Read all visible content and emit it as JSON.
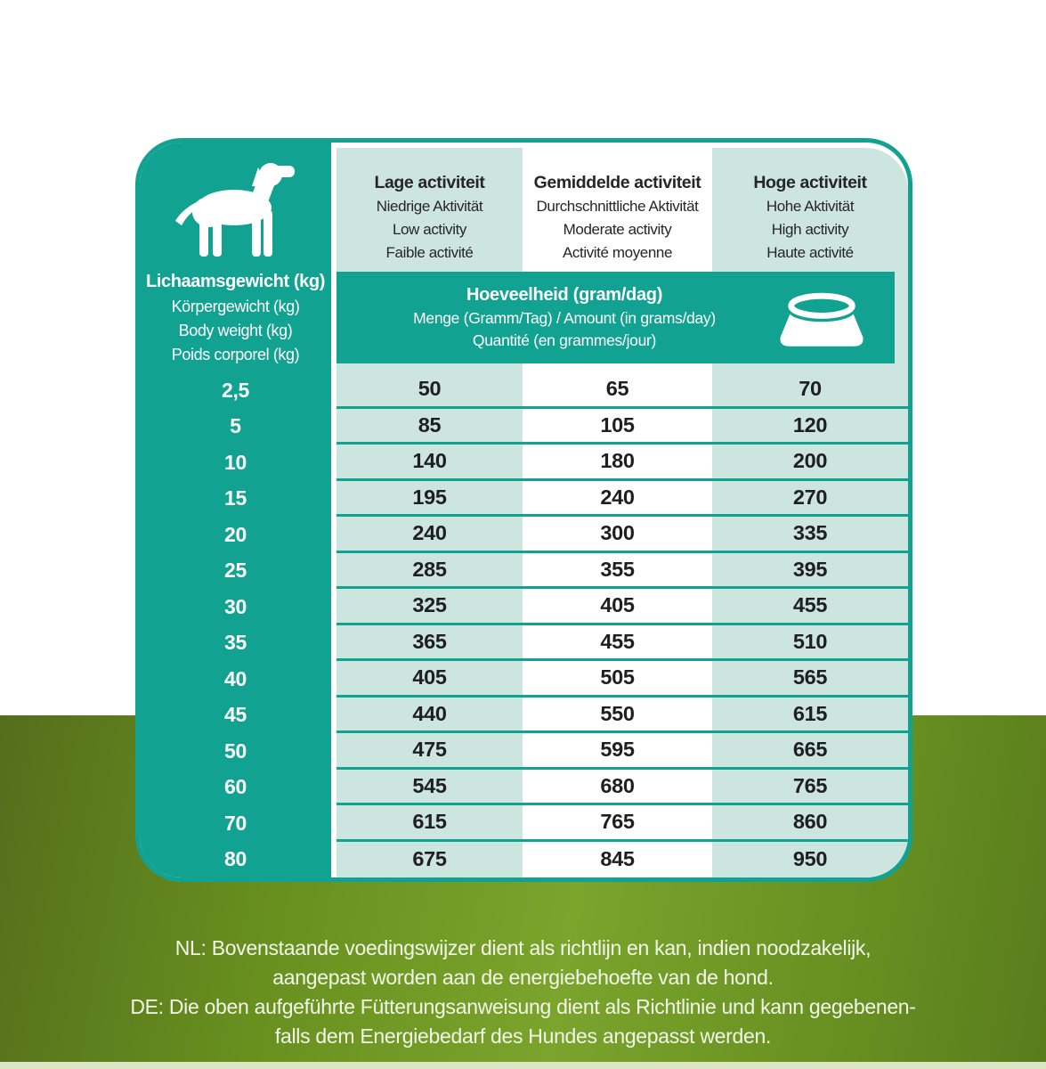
{
  "weight_panel": {
    "title": "Lichaamsgewicht (kg)",
    "subtitles": [
      "Körpergewicht (kg)",
      "Body weight (kg)",
      "Poids corporel (kg)"
    ]
  },
  "activity_columns": [
    {
      "title": "Lage activiteit",
      "subtitles": [
        "Niedrige Aktivität",
        "Low activity",
        "Faible activité"
      ]
    },
    {
      "title": "Gemiddelde activiteit",
      "subtitles": [
        "Durchschnittliche Aktivität",
        "Moderate activity",
        "Activité moyenne"
      ]
    },
    {
      "title": "Hoge activiteit",
      "subtitles": [
        "Hohe Aktivität",
        "High activity",
        "Haute activité"
      ]
    }
  ],
  "amount_band": {
    "title": "Hoeveelheid (gram/dag)",
    "subtitles": [
      "Menge (Gramm/Tag) / Amount (in grams/day)",
      "Quantité (en grammes/jour)"
    ]
  },
  "icons": {
    "dog": "dog-silhouette-icon",
    "bowl": "food-bowl-icon"
  },
  "colors": {
    "teal": "#12a291",
    "light_teal": "#cde5df",
    "green_left": "#546e1c",
    "green_center": "#7aa42c",
    "bottom_strip": "#dce6c4"
  },
  "table": {
    "rows": [
      {
        "weight": "2,5",
        "low": "50",
        "moderate": "65",
        "high": "70"
      },
      {
        "weight": "5",
        "low": "85",
        "moderate": "105",
        "high": "120"
      },
      {
        "weight": "10",
        "low": "140",
        "moderate": "180",
        "high": "200"
      },
      {
        "weight": "15",
        "low": "195",
        "moderate": "240",
        "high": "270"
      },
      {
        "weight": "20",
        "low": "240",
        "moderate": "300",
        "high": "335"
      },
      {
        "weight": "25",
        "low": "285",
        "moderate": "355",
        "high": "395"
      },
      {
        "weight": "30",
        "low": "325",
        "moderate": "405",
        "high": "455"
      },
      {
        "weight": "35",
        "low": "365",
        "moderate": "455",
        "high": "510"
      },
      {
        "weight": "40",
        "low": "405",
        "moderate": "505",
        "high": "565"
      },
      {
        "weight": "45",
        "low": "440",
        "moderate": "550",
        "high": "615"
      },
      {
        "weight": "50",
        "low": "475",
        "moderate": "595",
        "high": "665"
      },
      {
        "weight": "60",
        "low": "545",
        "moderate": "680",
        "high": "765"
      },
      {
        "weight": "70",
        "low": "615",
        "moderate": "765",
        "high": "860"
      },
      {
        "weight": "80",
        "low": "675",
        "moderate": "845",
        "high": "950"
      }
    ]
  },
  "footer": {
    "lines": [
      "NL: Bovenstaande voedingswijzer dient als richtlijn en kan, indien noodzakelijk,",
      "aangepast worden aan de energiebehoefte van de hond.",
      "DE: Die oben aufgeführte Fütterungsanweisung dient als Richtlinie und kann gegebenen-",
      "falls dem Energiebedarf des Hundes angepasst werden."
    ]
  }
}
